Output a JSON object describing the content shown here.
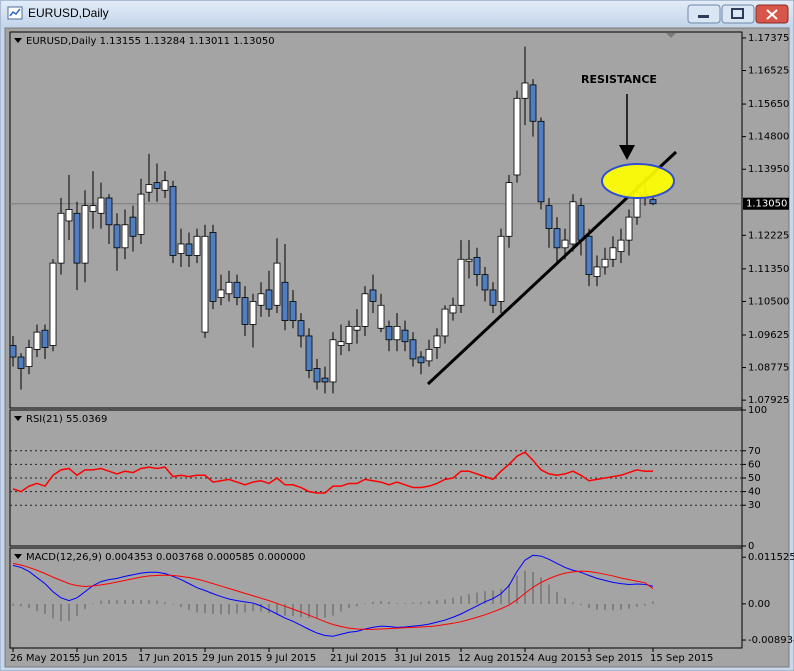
{
  "window": {
    "title": "EURUSD,Daily"
  },
  "chart_data": [
    {
      "type": "candlestick",
      "title": "EURUSD,Daily  1.13155 1.13284 1.13011 1.13050",
      "annotation": "RESISTANCE",
      "up_color": "#ffffff",
      "down_color": "#4f7fbf",
      "categories": [
        "26 May 2015",
        null,
        null,
        null,
        null,
        null,
        null,
        null,
        "5 Jun 2015",
        null,
        null,
        null,
        null,
        null,
        null,
        null,
        "17 Jun 2015",
        null,
        null,
        null,
        null,
        null,
        null,
        null,
        "29 Jun 2015",
        null,
        null,
        null,
        null,
        null,
        null,
        null,
        "9 Jul 2015",
        null,
        null,
        null,
        null,
        null,
        null,
        null,
        "21 Jul 2015",
        null,
        null,
        null,
        null,
        null,
        null,
        null,
        "31 Jul 2015",
        null,
        null,
        null,
        null,
        null,
        null,
        null,
        "12 Aug 2015",
        null,
        null,
        null,
        null,
        null,
        null,
        null,
        "24 Aug 2015",
        null,
        null,
        null,
        null,
        null,
        null,
        null,
        "3 Sep 2015",
        null,
        null,
        null,
        null,
        null,
        null,
        null,
        "15 Sep 2015"
      ],
      "open": [
        1.0935,
        1.0905,
        1.088,
        1.0925,
        1.0975,
        1.0935,
        1.115,
        1.126,
        1.128,
        1.115,
        1.1285,
        1.128,
        1.132,
        1.125,
        1.119,
        1.127,
        1.1225,
        1.1335,
        1.136,
        1.134,
        1.135,
        1.1175,
        1.12,
        1.117,
        1.097,
        1.123,
        1.106,
        1.107,
        1.11,
        1.106,
        1.099,
        1.104,
        1.108,
        1.104,
        1.11,
        1.105,
        1.1,
        1.096,
        1.0875,
        1.085,
        1.084,
        1.0935,
        1.094,
        1.0975,
        1.0985,
        1.108,
        1.098,
        1.0985,
        1.095,
        1.0975,
        1.095,
        1.0905,
        1.0895,
        1.093,
        1.096,
        1.102,
        1.104,
        1.1155,
        1.1165,
        1.112,
        1.108,
        1.105,
        1.122,
        1.138,
        1.158,
        1.1615,
        1.152,
        1.13,
        1.124,
        1.119,
        1.12,
        1.13,
        1.122,
        1.1115,
        1.114,
        1.116,
        1.118,
        1.121,
        1.127,
        1.133,
        1.13155
      ],
      "high": [
        1.096,
        1.0915,
        1.095,
        1.099,
        1.099,
        1.116,
        1.132,
        1.138,
        1.131,
        1.134,
        1.139,
        1.136,
        1.133,
        1.128,
        1.129,
        1.13,
        1.137,
        1.1435,
        1.141,
        1.139,
        1.1365,
        1.124,
        1.123,
        1.124,
        1.125,
        1.125,
        1.112,
        1.113,
        1.112,
        1.109,
        1.107,
        1.11,
        1.113,
        1.1215,
        1.12,
        1.108,
        1.102,
        1.098,
        1.09,
        1.088,
        1.097,
        1.099,
        1.1,
        1.103,
        1.109,
        1.112,
        1.107,
        1.1,
        1.102,
        1.1,
        1.097,
        1.092,
        1.095,
        1.098,
        1.104,
        1.106,
        1.121,
        1.121,
        1.119,
        1.114,
        1.11,
        1.124,
        1.138,
        1.16,
        1.1715,
        1.163,
        1.153,
        1.132,
        1.127,
        1.124,
        1.133,
        1.132,
        1.124,
        1.117,
        1.119,
        1.122,
        1.124,
        1.129,
        1.136,
        1.138,
        1.13284
      ],
      "low": [
        1.088,
        1.082,
        1.086,
        1.0905,
        1.09,
        1.092,
        1.112,
        1.121,
        1.108,
        1.11,
        1.124,
        1.124,
        1.12,
        1.113,
        1.116,
        1.118,
        1.12,
        1.131,
        1.131,
        1.132,
        1.115,
        1.114,
        1.114,
        1.115,
        1.0955,
        1.103,
        1.104,
        1.105,
        1.104,
        1.096,
        1.093,
        1.101,
        1.101,
        1.102,
        1.0975,
        1.098,
        1.093,
        1.085,
        1.082,
        1.081,
        1.081,
        1.091,
        1.092,
        1.094,
        1.096,
        1.102,
        1.097,
        1.092,
        1.092,
        1.092,
        1.088,
        1.086,
        1.088,
        1.09,
        1.094,
        1.1,
        1.102,
        1.111,
        1.109,
        1.105,
        1.102,
        1.102,
        1.119,
        1.136,
        1.151,
        1.148,
        1.129,
        1.119,
        1.115,
        1.116,
        1.118,
        1.117,
        1.109,
        1.109,
        1.112,
        1.114,
        1.115,
        1.117,
        1.125,
        1.13,
        1.13011
      ],
      "close": [
        1.0905,
        1.0875,
        1.093,
        1.097,
        1.093,
        1.115,
        1.128,
        1.129,
        1.115,
        1.13,
        1.13,
        1.132,
        1.125,
        1.119,
        1.125,
        1.122,
        1.133,
        1.1355,
        1.1345,
        1.1365,
        1.117,
        1.12,
        1.117,
        1.122,
        1.122,
        1.105,
        1.108,
        1.11,
        1.106,
        1.099,
        1.105,
        1.107,
        1.103,
        1.115,
        1.1,
        1.1,
        1.096,
        1.087,
        1.084,
        1.084,
        1.095,
        1.0945,
        1.0985,
        1.0985,
        1.107,
        1.105,
        1.104,
        1.095,
        1.0985,
        1.0945,
        1.09,
        1.089,
        1.0925,
        1.096,
        1.103,
        1.104,
        1.116,
        1.116,
        1.112,
        1.108,
        1.104,
        1.122,
        1.136,
        1.158,
        1.162,
        1.152,
        1.131,
        1.124,
        1.119,
        1.121,
        1.131,
        1.121,
        1.112,
        1.114,
        1.116,
        1.119,
        1.121,
        1.127,
        1.1335,
        1.132,
        1.1305
      ],
      "ylim": [
        1.0772,
        1.1753
      ],
      "yticks": [
        1.17375,
        1.16525,
        {
          "value": 1.1565,
          "label": "1.15650"
        },
        {
          "value": 1.148,
          "label": "1.14800"
        },
        {
          "value": 1.1395,
          "label": "1.13950"
        },
        1.12225,
        {
          "value": 1.1135,
          "label": "1.11350"
        },
        {
          "value": 1.105,
          "label": "1.10500"
        },
        1.09625,
        1.08775,
        1.07925
      ],
      "last_price": {
        "value": 1.1305,
        "label": "1.13050"
      }
    },
    {
      "type": "line",
      "title": "RSI(21) 55.0369",
      "color": "#ff0000",
      "values": [
        42,
        40,
        44,
        46,
        44,
        52,
        56,
        57,
        52,
        56,
        56,
        57,
        55,
        53,
        55,
        54,
        57,
        58,
        57,
        58,
        51,
        52,
        51,
        52,
        52,
        47,
        48,
        49,
        47,
        45,
        47,
        48,
        46,
        50,
        45,
        45,
        43,
        40,
        39,
        39,
        44,
        44,
        46,
        46,
        49,
        48,
        47,
        45,
        47,
        45,
        43,
        43,
        44,
        46,
        49,
        50,
        55,
        55,
        53,
        51,
        49,
        55,
        60,
        66,
        69,
        63,
        56,
        53,
        52,
        53,
        55,
        52,
        48,
        49,
        50,
        51,
        52,
        54,
        56,
        55,
        55.0369
      ],
      "ylim": [
        0,
        100
      ],
      "yticks": [
        100,
        70,
        60,
        50,
        40,
        30,
        0
      ],
      "levels": [
        70,
        60,
        50,
        40,
        30
      ]
    },
    {
      "type": "macd",
      "title": "MACD(12,26,9) 0.004353 0.003768 0.000585 0.000000",
      "series": [
        {
          "type": "bar",
          "color": "#808080",
          "values": [
            -0.0005,
            -0.0006,
            -0.001,
            -0.0018,
            -0.0025,
            -0.0036,
            -0.0043,
            -0.0042,
            -0.003,
            -0.0013,
            0.0001,
            0.0008,
            0.001,
            0.0009,
            0.001,
            0.001,
            0.001,
            0.0009,
            0.0008,
            0.0004,
            -0.0002,
            -0.0008,
            -0.0015,
            -0.0021,
            -0.0023,
            -0.0025,
            -0.0026,
            -0.0026,
            -0.0024,
            -0.0021,
            -0.0018,
            -0.0019,
            -0.0023,
            -0.0026,
            -0.0029,
            -0.003,
            -0.0033,
            -0.0035,
            -0.0036,
            -0.0034,
            -0.0029,
            -0.0019,
            -0.001,
            -0.0006,
            0.0001,
            0.0005,
            0.0007,
            0.0005,
            0.0002,
            0.0002,
            0.0003,
            0.0004,
            0.0006,
            0.0009,
            0.0011,
            0.0015,
            0.0019,
            0.0024,
            0.0028,
            0.0032,
            0.0033,
            0.0037,
            0.0048,
            0.007,
            0.0082,
            0.0079,
            0.0065,
            0.0048,
            0.003,
            0.0014,
            0.0004,
            -0.0003,
            -0.001,
            -0.0014,
            -0.0015,
            -0.0016,
            -0.0014,
            -0.0012,
            -0.0007,
            -0.0004,
            0.000585
          ]
        },
        {
          "type": "line",
          "color": "#0000ff",
          "values": [
            0.0095,
            0.009,
            0.008,
            0.0065,
            0.005,
            0.003,
            0.0015,
            0.0008,
            0.0015,
            0.003,
            0.0045,
            0.0055,
            0.006,
            0.0063,
            0.0068,
            0.0072,
            0.0076,
            0.0078,
            0.0078,
            0.0075,
            0.0068,
            0.006,
            0.005,
            0.004,
            0.0033,
            0.0025,
            0.0018,
            0.0012,
            0.0008,
            0.0005,
            0.0002,
            -0.0005,
            -0.0015,
            -0.0025,
            -0.0035,
            -0.0043,
            -0.0053,
            -0.0063,
            -0.0072,
            -0.0078,
            -0.008,
            -0.0075,
            -0.007,
            -0.0068,
            -0.0062,
            -0.0058,
            -0.0055,
            -0.0056,
            -0.0058,
            -0.0057,
            -0.0055,
            -0.0053,
            -0.005,
            -0.0045,
            -0.004,
            -0.0033,
            -0.0025,
            -0.0015,
            -0.0005,
            0.0005,
            0.0013,
            0.0025,
            0.0045,
            0.008,
            0.0108,
            0.012,
            0.0118,
            0.011,
            0.01,
            0.009,
            0.0083,
            0.0078,
            0.007,
            0.0063,
            0.0058,
            0.0053,
            0.005,
            0.0048,
            0.0049,
            0.0048,
            0.004353
          ]
        },
        {
          "type": "line",
          "color": "#ff0000",
          "values": [
            0.01,
            0.0096,
            0.009,
            0.0083,
            0.0075,
            0.0066,
            0.0058,
            0.005,
            0.0045,
            0.0043,
            0.0044,
            0.0047,
            0.005,
            0.0054,
            0.0058,
            0.0062,
            0.0066,
            0.0069,
            0.007,
            0.0071,
            0.007,
            0.0068,
            0.0065,
            0.0061,
            0.0056,
            0.005,
            0.0044,
            0.0038,
            0.0032,
            0.0026,
            0.002,
            0.0014,
            0.0008,
            0.0001,
            -0.0006,
            -0.0013,
            -0.002,
            -0.0028,
            -0.0036,
            -0.0044,
            -0.0051,
            -0.0056,
            -0.006,
            -0.0062,
            -0.0063,
            -0.0063,
            -0.0062,
            -0.0061,
            -0.006,
            -0.0059,
            -0.0058,
            -0.0057,
            -0.0056,
            -0.0054,
            -0.0051,
            -0.0048,
            -0.0044,
            -0.0039,
            -0.0033,
            -0.0027,
            -0.002,
            -0.0012,
            -0.0003,
            0.001,
            0.0026,
            0.0041,
            0.0053,
            0.0062,
            0.007,
            0.0076,
            0.0079,
            0.0081,
            0.008,
            0.0077,
            0.0073,
            0.0069,
            0.0064,
            0.006,
            0.0056,
            0.0052,
            0.003768
          ]
        }
      ],
      "ylim": [
        -0.0109,
        0.0138
      ],
      "yticks": [
        0.011525,
        {
          "value": 0,
          "label": "0.00"
        },
        -0.008934
      ]
    }
  ]
}
